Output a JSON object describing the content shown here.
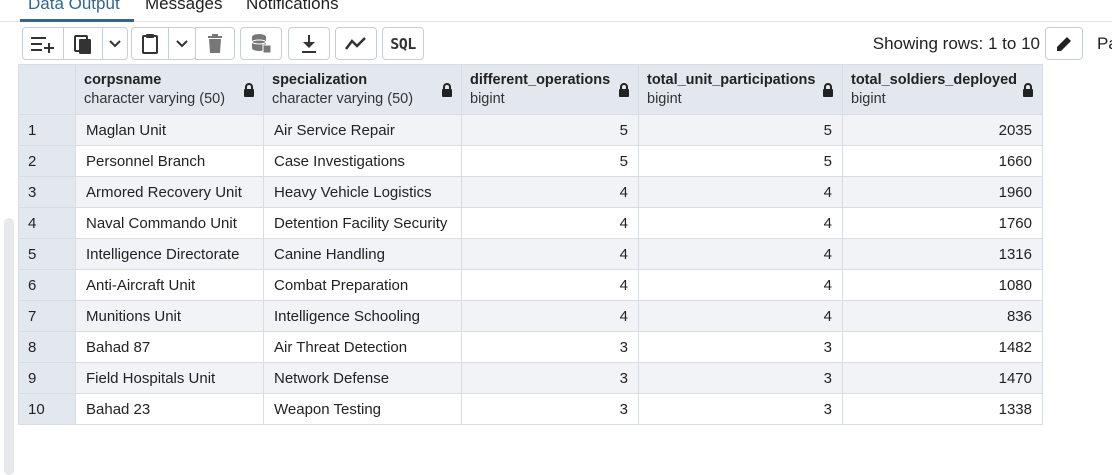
{
  "tabs": [
    {
      "label": "Data Output",
      "active": true
    },
    {
      "label": "Messages",
      "active": false
    },
    {
      "label": "Notifications",
      "active": false
    }
  ],
  "toolbar": {
    "icons": [
      "add-row-icon",
      "copy-icon",
      "chevron-down-icon",
      "paste-icon",
      "chevron-down-icon",
      "delete-icon",
      "save-data-icon",
      "download-icon",
      "graph-icon",
      "sql-icon"
    ],
    "sql_label": "SQL",
    "rows_info": "Showing rows: 1 to 10",
    "edit_icon": "pencil-icon",
    "truncated_label": "Pa"
  },
  "grid": {
    "columns": [
      {
        "name": "corpsname",
        "type": "character varying (50)"
      },
      {
        "name": "specialization",
        "type": "character varying (50)"
      },
      {
        "name": "different_operations",
        "type": "bigint"
      },
      {
        "name": "total_unit_participations",
        "type": "bigint"
      },
      {
        "name": "total_soldiers_deployed",
        "type": "bigint"
      }
    ],
    "rows": [
      {
        "n": "1",
        "corpsname": "Maglan Unit",
        "specialization": "Air Service Repair",
        "different_operations": "5",
        "total_unit_participations": "5",
        "total_soldiers_deployed": "2035"
      },
      {
        "n": "2",
        "corpsname": "Personnel Branch",
        "specialization": "Case Investigations",
        "different_operations": "5",
        "total_unit_participations": "5",
        "total_soldiers_deployed": "1660"
      },
      {
        "n": "3",
        "corpsname": "Armored Recovery Unit",
        "specialization": "Heavy Vehicle Logistics",
        "different_operations": "4",
        "total_unit_participations": "4",
        "total_soldiers_deployed": "1960"
      },
      {
        "n": "4",
        "corpsname": "Naval Commando Unit",
        "specialization": "Detention Facility Security",
        "different_operations": "4",
        "total_unit_participations": "4",
        "total_soldiers_deployed": "1760"
      },
      {
        "n": "5",
        "corpsname": "Intelligence Directorate",
        "specialization": "Canine Handling",
        "different_operations": "4",
        "total_unit_participations": "4",
        "total_soldiers_deployed": "1316"
      },
      {
        "n": "6",
        "corpsname": "Anti-Aircraft Unit",
        "specialization": "Combat Preparation",
        "different_operations": "4",
        "total_unit_participations": "4",
        "total_soldiers_deployed": "1080"
      },
      {
        "n": "7",
        "corpsname": "Munitions Unit",
        "specialization": "Intelligence Schooling",
        "different_operations": "4",
        "total_unit_participations": "4",
        "total_soldiers_deployed": "836"
      },
      {
        "n": "8",
        "corpsname": "Bahad 87",
        "specialization": "Air Threat Detection",
        "different_operations": "3",
        "total_unit_participations": "3",
        "total_soldiers_deployed": "1482"
      },
      {
        "n": "9",
        "corpsname": "Field Hospitals Unit",
        "specialization": "Network Defense",
        "different_operations": "3",
        "total_unit_participations": "3",
        "total_soldiers_deployed": "1470"
      },
      {
        "n": "10",
        "corpsname": "Bahad 23",
        "specialization": "Weapon Testing",
        "different_operations": "3",
        "total_unit_participations": "3",
        "total_soldiers_deployed": "1338"
      }
    ]
  }
}
